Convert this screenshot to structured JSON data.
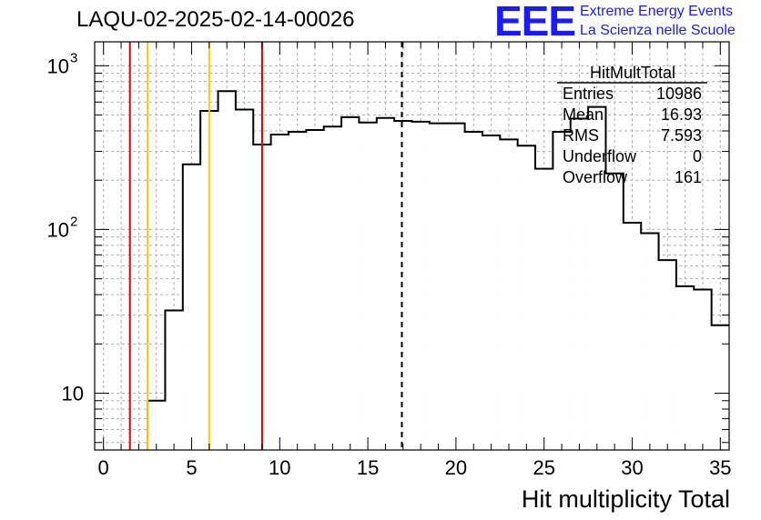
{
  "chart_data": {
    "type": "histogram",
    "title": "LAQU-02-2025-02-14-00026",
    "xlabel": "Hit multiplicity Total",
    "ylabel": "",
    "xlim": [
      -0.5,
      35.5
    ],
    "ylim": [
      4.5,
      1400
    ],
    "yscale": "log",
    "grid": true,
    "bin_width": 1,
    "x_ticks": [
      "0",
      "5",
      "10",
      "15",
      "20",
      "25",
      "30",
      "35"
    ],
    "x": [
      3,
      4,
      5,
      6,
      7,
      8,
      9,
      10,
      11,
      12,
      13,
      14,
      15,
      16,
      17,
      18,
      19,
      20,
      21,
      22,
      23,
      24,
      25,
      26,
      27,
      28,
      29,
      30,
      31,
      32,
      33,
      34,
      35
    ],
    "values": [
      9,
      32,
      250,
      530,
      700,
      540,
      330,
      380,
      395,
      405,
      425,
      485,
      450,
      480,
      460,
      455,
      445,
      445,
      395,
      375,
      355,
      325,
      235,
      395,
      475,
      560,
      220,
      110,
      95,
      65,
      45,
      43,
      26
    ],
    "vertical_lines": [
      {
        "x": 1.5,
        "color": "#e00000",
        "style": "solid"
      },
      {
        "x": 2.5,
        "color": "#ffcc00",
        "style": "solid"
      },
      {
        "x": 6.0,
        "color": "#ffcc00",
        "style": "solid"
      },
      {
        "x": 9.0,
        "color": "#e00000",
        "style": "solid"
      },
      {
        "x": 16.93,
        "color": "#000000",
        "style": "dashed"
      }
    ],
    "stats": {
      "name": "HitMultTotal",
      "rows": [
        {
          "label": "Entries",
          "value": "10986"
        },
        {
          "label": "Mean",
          "value": "16.93"
        },
        {
          "label": "RMS",
          "value": "7.593"
        },
        {
          "label": "Underflow",
          "value": "0"
        },
        {
          "label": "Overflow",
          "value": "161"
        }
      ]
    }
  },
  "logo": {
    "mark": "EEE",
    "line1": "Extreme Energy Events",
    "line2": "La Scienza nelle Scuole"
  }
}
